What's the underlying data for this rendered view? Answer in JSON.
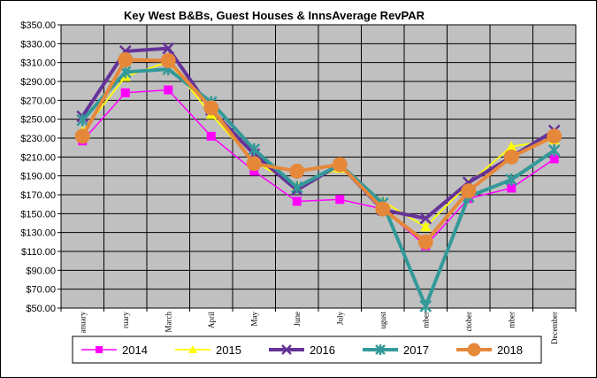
{
  "chart_data": {
    "type": "line",
    "title": "Key West B&Bs, Guest Houses & InnsAverage RevPAR",
    "xlabel": "",
    "ylabel": "",
    "categories": [
      "anuary",
      "ruary",
      "March",
      "April",
      "May",
      "June",
      "July",
      "ugust",
      "mber",
      "ctober",
      "mber",
      "December"
    ],
    "ylim": [
      50,
      350
    ],
    "yticks": [
      50,
      70,
      90,
      110,
      130,
      150,
      170,
      190,
      210,
      230,
      250,
      270,
      290,
      310,
      330,
      350
    ],
    "ytick_labels": [
      "$50.00",
      "$70.00",
      "$90.00",
      "$110.00",
      "$130.00",
      "$150.00",
      "$170.00",
      "$190.00",
      "$210.00",
      "$230.00",
      "$250.00",
      "$270.00",
      "$290.00",
      "$310.00",
      "$330.00",
      "$350.00"
    ],
    "grid": true,
    "legend_position": "bottom",
    "series": [
      {
        "name": "2014",
        "color": "#ff00ff",
        "marker": "square",
        "values": [
          227,
          278,
          281,
          232,
          195,
          163,
          165,
          155,
          116,
          166,
          177,
          208
        ]
      },
      {
        "name": "2015",
        "color": "#ffff00",
        "marker": "triangle",
        "values": [
          237,
          295,
          311,
          255,
          205,
          180,
          198,
          163,
          136,
          182,
          221,
          228
        ]
      },
      {
        "name": "2016",
        "color": "#663399",
        "marker": "x",
        "values": [
          253,
          322,
          325,
          260,
          213,
          175,
          202,
          154,
          145,
          183,
          210,
          238
        ]
      },
      {
        "name": "2017",
        "color": "#339999",
        "marker": "star",
        "values": [
          249,
          300,
          303,
          268,
          218,
          178,
          202,
          161,
          52,
          168,
          186,
          217
        ]
      },
      {
        "name": "2018",
        "color": "#e6883a",
        "marker": "circle",
        "values": [
          232,
          313,
          312,
          262,
          203,
          195,
          202,
          155,
          120,
          174,
          210,
          232
        ]
      }
    ]
  }
}
